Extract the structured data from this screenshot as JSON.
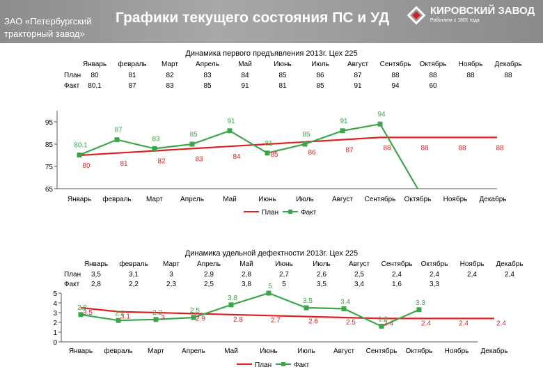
{
  "header": {
    "company": "ЗАО «Петербургский тракторный завод»",
    "title": "Графики текущего состояния ПС и УД",
    "logo_name": "КИРОВСКИЙ ЗАВОД",
    "logo_sub": "Работаем с 1801 года"
  },
  "chart_data": [
    {
      "type": "line",
      "title": "Динамика первого предъявления 2013г. Цех 225",
      "categories": [
        "Январь",
        "февраль",
        "Март",
        "Апрель",
        "Май",
        "Июнь",
        "Июль",
        "Август",
        "Сентябрь",
        "Октябрь",
        "Ноябрь",
        "Декабрь"
      ],
      "series": [
        {
          "name": "План",
          "values": [
            80,
            81,
            82,
            83,
            84,
            85,
            86,
            87,
            88,
            88,
            88,
            88
          ],
          "color": "#e02020"
        },
        {
          "name": "Факт",
          "values": [
            80.1,
            87,
            83,
            85,
            91,
            81,
            85,
            91,
            94,
            60,
            null,
            null
          ],
          "color": "#3aa64a"
        }
      ],
      "table": {
        "row_labels": [
          "План",
          "Факт"
        ],
        "plan_text": [
          "80",
          "81",
          "82",
          "83",
          "84",
          "85",
          "86",
          "87",
          "88",
          "88",
          "88",
          "88"
        ],
        "fact_text": [
          "80,1",
          "87",
          "83",
          "85",
          "91",
          "81",
          "85",
          "91",
          "94",
          "60",
          "",
          ""
        ]
      },
      "plan_labels": [
        "80",
        "81",
        "82",
        "83",
        "84",
        "85",
        "86",
        "87",
        "88",
        "88",
        "88",
        "88"
      ],
      "fact_labels": [
        "80.1",
        "87",
        "83",
        "85",
        "91",
        "81",
        "85",
        "91",
        "94",
        "",
        "",
        ""
      ],
      "y_ticks": [
        "95",
        "85",
        "75",
        "65"
      ],
      "ylim": [
        65,
        100
      ],
      "legend": [
        "План",
        "Факт"
      ],
      "legend_position": "bottom",
      "grid": false
    },
    {
      "type": "line",
      "title": "Динамика удельной дефектности 2013г.   Цех 225",
      "categories": [
        "Январь",
        "февраль",
        "Март",
        "Апрель",
        "Май",
        "Июнь",
        "Июль",
        "Август",
        "Сентябрь",
        "Октябрь",
        "Ноябрь",
        "Декабрь"
      ],
      "series": [
        {
          "name": "План",
          "values": [
            3.5,
            3.1,
            3,
            2.9,
            2.8,
            2.7,
            2.6,
            2.5,
            2.4,
            2.4,
            2.4,
            2.4
          ],
          "color": "#e02020"
        },
        {
          "name": "Факт",
          "values": [
            2.8,
            2.2,
            2.3,
            2.5,
            3.8,
            5,
            3.5,
            3.4,
            1.6,
            3.3,
            null,
            null
          ],
          "color": "#3aa64a"
        }
      ],
      "table": {
        "row_labels": [
          "План",
          "Факт"
        ],
        "plan_text": [
          "3,5",
          "3,1",
          "3",
          "2,9",
          "2,8",
          "2,7",
          "2,6",
          "2,5",
          "2,4",
          "2,4",
          "2,4",
          "2,4"
        ],
        "fact_text": [
          "2,8",
          "2,2",
          "2,3",
          "2,5",
          "3,8",
          "5",
          "3,5",
          "3,4",
          "1,6",
          "3,3",
          "",
          ""
        ]
      },
      "plan_labels": [
        "3.5",
        "3.1",
        "3",
        "2.9",
        "2.8",
        "2.7",
        "2.6",
        "2.5",
        "2.4",
        "2.4",
        "2.4",
        "2.4"
      ],
      "fact_labels": [
        "2.8",
        "2.2",
        "2.3",
        "2.5",
        "3.8",
        "5",
        "3.5",
        "3.4",
        "1.6",
        "3.3",
        "",
        ""
      ],
      "y_ticks": [
        "5",
        "4",
        "3",
        "2",
        "1",
        "0"
      ],
      "ylim": [
        0,
        5
      ],
      "legend": [
        "План",
        "Факт"
      ],
      "legend_position": "bottom",
      "grid": false
    }
  ]
}
